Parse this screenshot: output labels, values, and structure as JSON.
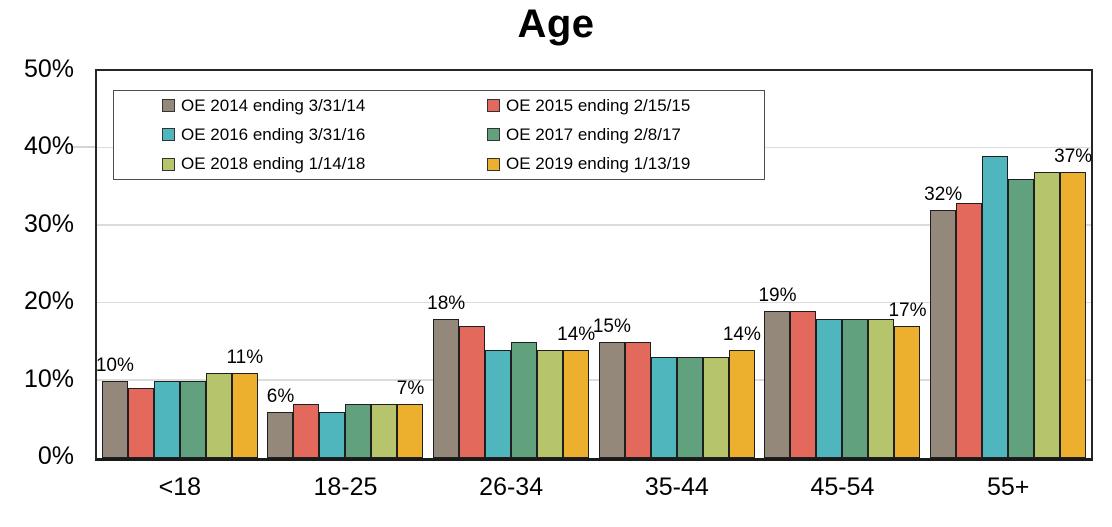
{
  "chart_data": {
    "type": "bar",
    "title": "Age",
    "xlabel": "",
    "ylabel": "",
    "categories": [
      "<18",
      "18-25",
      "26-34",
      "35-44",
      "45-54",
      "55+"
    ],
    "series": [
      {
        "name": "OE 2014 ending 3/31/14",
        "color": "#94887B",
        "values": [
          10,
          6,
          18,
          15,
          19,
          32
        ]
      },
      {
        "name": "OE 2015 ending 2/15/15",
        "color": "#E2695B",
        "values": [
          9,
          7,
          17,
          15,
          19,
          33
        ]
      },
      {
        "name": "OE 2016 ending 3/31/16",
        "color": "#4FB6BD",
        "values": [
          10,
          6,
          14,
          13,
          18,
          39
        ]
      },
      {
        "name": "OE 2017 ending 2/8/17",
        "color": "#61A17E",
        "values": [
          10,
          7,
          15,
          13,
          18,
          36
        ]
      },
      {
        "name": "OE 2018 ending 1/14/18",
        "color": "#B6C56C",
        "values": [
          11,
          7,
          14,
          13,
          18,
          37
        ]
      },
      {
        "name": "OE 2019 ending 1/13/19",
        "color": "#EDB02E",
        "values": [
          11,
          7,
          14,
          14,
          17,
          37
        ]
      }
    ],
    "data_labels": [
      {
        "category": "<18",
        "first_bar": "10%",
        "last_bar": "11%"
      },
      {
        "category": "18-25",
        "first_bar": "6%",
        "last_bar": "7%"
      },
      {
        "category": "26-34",
        "first_bar": "18%",
        "last_bar": "14%"
      },
      {
        "category": "35-44",
        "first_bar": "15%",
        "last_bar": "14%"
      },
      {
        "category": "45-54",
        "first_bar": "19%",
        "last_bar": "17%"
      },
      {
        "category": "55+",
        "first_bar": "32%",
        "last_bar": "37%"
      }
    ],
    "y_axis": {
      "max": 50,
      "ticks": [
        0,
        10,
        20,
        30,
        40,
        50
      ],
      "tick_labels": [
        "0%",
        "10%",
        "20%",
        "30%",
        "40%",
        "50%"
      ]
    },
    "legend_position": "top-left",
    "grid": "horizontal",
    "colors": {
      "gridline": "#DCDCDC",
      "axis": "#1A1A1A",
      "bar_border": "#1F1F1F",
      "background": "#FFFFFF",
      "text": "#000000"
    }
  }
}
